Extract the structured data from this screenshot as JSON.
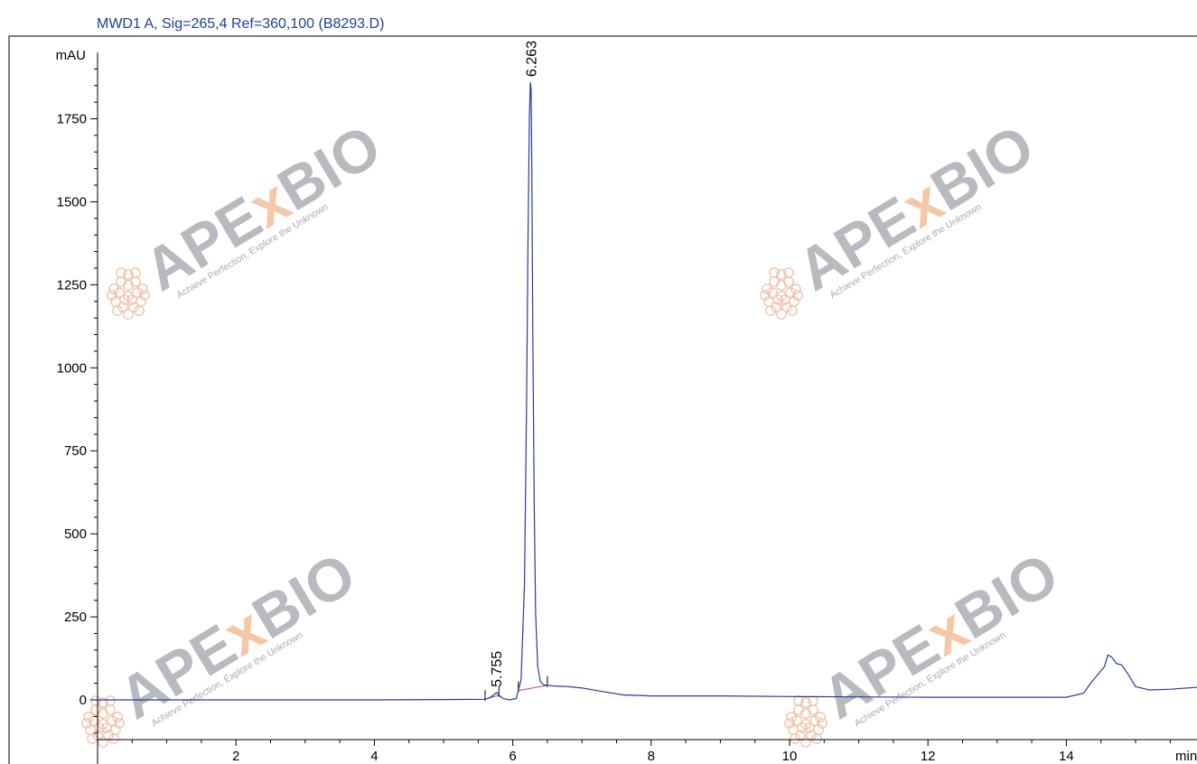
{
  "chart_data": {
    "type": "line",
    "title": "MWD1 A, Sig=265,4 Ref=360,100 (B8293.D)",
    "ylabel": "mAU",
    "xlabel": "min",
    "xlim": [
      0,
      16.3
    ],
    "ylim": [
      -150,
      1950
    ],
    "x_ticks": [
      2,
      4,
      6,
      8,
      10,
      12,
      14
    ],
    "y_ticks": [
      0,
      250,
      500,
      750,
      1000,
      1250,
      1500,
      1750
    ],
    "series": [
      {
        "x": [
          0.0,
          2.0,
          4.0,
          5.0,
          5.6,
          5.68,
          5.74,
          5.77,
          5.8,
          5.86,
          5.95,
          6.05,
          6.12,
          6.17,
          6.2,
          6.22,
          6.24,
          6.255,
          6.265,
          6.275,
          6.29,
          6.31,
          6.33,
          6.36,
          6.4,
          6.45,
          6.5,
          6.6,
          6.8,
          7.0,
          7.3,
          7.6,
          8.0,
          9.0,
          10.0,
          11.0,
          12.0,
          13.0,
          14.0,
          14.25,
          14.35,
          14.45,
          14.55,
          14.6,
          14.65,
          14.72,
          14.8,
          14.9,
          15.0,
          15.2,
          15.5,
          15.9,
          16.3
        ],
        "values": [
          0,
          0,
          0,
          1,
          2,
          8,
          18,
          22,
          14,
          4,
          0,
          4,
          60,
          350,
          900,
          1400,
          1750,
          1860,
          1840,
          1600,
          1100,
          600,
          260,
          100,
          55,
          45,
          44,
          42,
          40,
          36,
          25,
          15,
          12,
          12,
          10,
          9,
          8,
          8,
          8,
          20,
          50,
          75,
          100,
          135,
          130,
          110,
          105,
          75,
          40,
          30,
          32,
          38,
          35
        ]
      }
    ],
    "peaks": [
      {
        "rt": 5.755,
        "label": "5.755",
        "height": 22
      },
      {
        "rt": 6.263,
        "label": "6.263",
        "height": 1860
      }
    ],
    "baselines": [
      {
        "start": 5.6,
        "end": 5.8
      },
      {
        "start": 6.08,
        "end": 6.5
      }
    ],
    "grid": false
  },
  "watermark": {
    "brand_pre": "APE",
    "brand_x": "x",
    "brand_post": "BIO",
    "tagline": "Achieve Perfection, Explore the Unknown"
  },
  "colors": {
    "trace": "#2a3a9a",
    "baseline": "#d0407a",
    "title": "#1f3f9a",
    "wm_gray": "#b8babf",
    "wm_orange": "#f3c7a8",
    "wm_seal": "#f0c2a8"
  }
}
